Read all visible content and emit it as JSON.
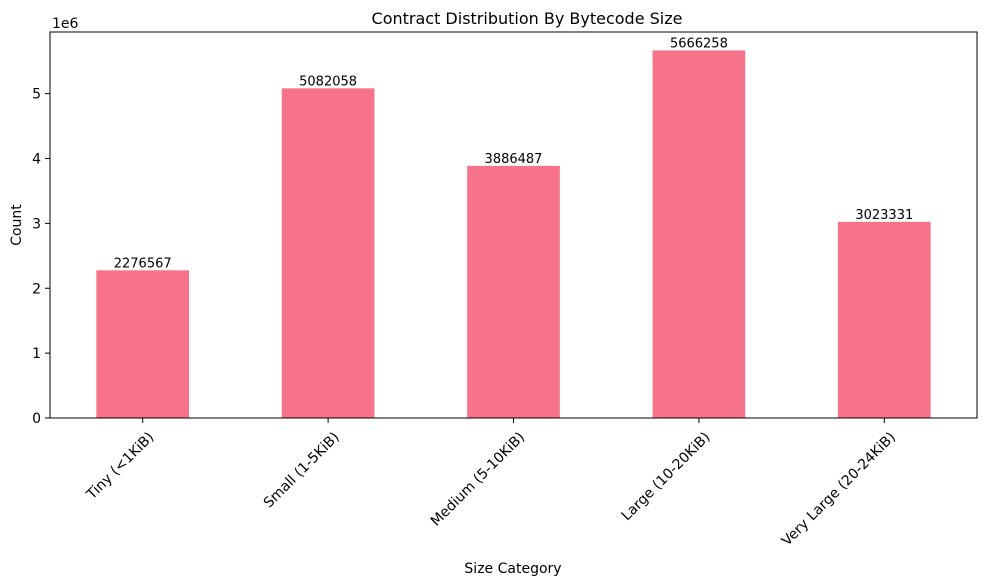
{
  "chart_data": {
    "type": "bar",
    "title": "Contract Distribution By Bytecode Size",
    "xlabel": "Size Category",
    "ylabel": "Count",
    "y_multiplier_label": "1e6",
    "categories": [
      "Tiny (<1KiB)",
      "Small (1-5KiB)",
      "Medium (5-10KiB)",
      "Large (10-20KiB)",
      "Very Large (20-24KiB)"
    ],
    "values": [
      2276567,
      5082058,
      3886487,
      5666258,
      3023331
    ],
    "data_labels": [
      "2276567",
      "5082058",
      "3886487",
      "5666258",
      "3023331"
    ],
    "ylim": [
      0,
      5950000
    ],
    "yticks": [
      0,
      1000000,
      2000000,
      3000000,
      4000000,
      5000000
    ],
    "ytick_labels": [
      "0",
      "1",
      "2",
      "3",
      "4",
      "5"
    ],
    "bar_color": "#f7738a",
    "grid": false,
    "legend": "none"
  }
}
